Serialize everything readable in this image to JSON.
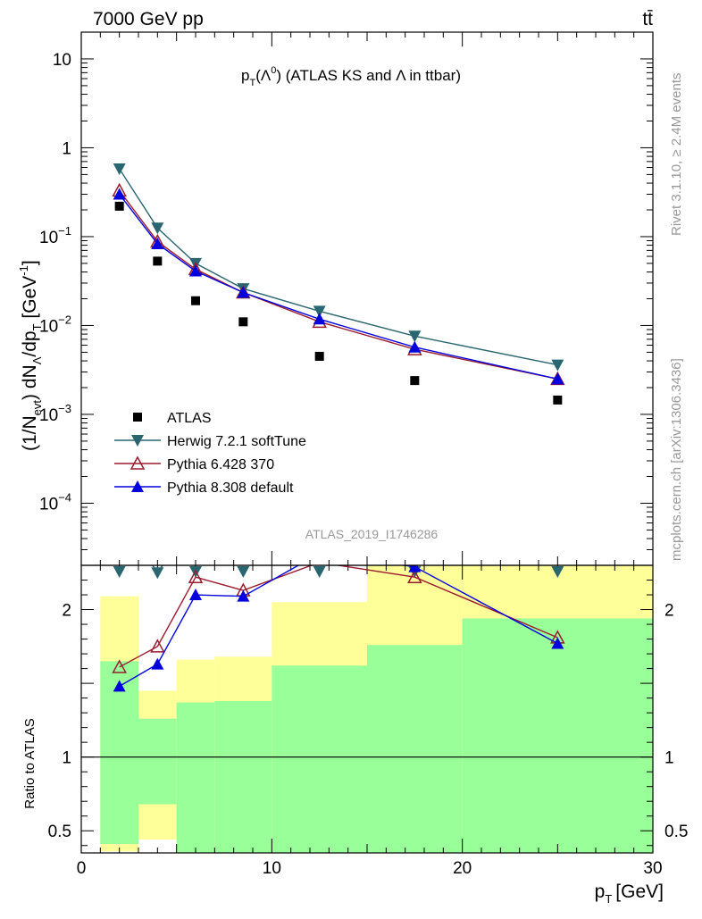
{
  "header": {
    "left": "7000 GeV pp",
    "right": "tt̄"
  },
  "side": {
    "rivet": "Rivet 3.1.10, ≥ 2.4M events",
    "mcplots": "mcplots.cern.ch [arXiv:1306.3436]"
  },
  "chart_data": {
    "type": "line",
    "title_parts": {
      "p": "p",
      "T": "T",
      "lam": "(Λ",
      "zero": "0",
      "rest": ") (ATLAS KS and Λ in ttbar)"
    },
    "analysis_label": "ATLAS_2019_I1746286",
    "x_axis": {
      "label_parts": {
        "p": "p",
        "T": "T",
        "unit": "[GeV]"
      },
      "range": [
        0,
        30
      ],
      "ticks": [
        0,
        10,
        20,
        30
      ],
      "tick_labels": [
        "0",
        "10",
        "20",
        "30"
      ]
    },
    "main_panel": {
      "scale": "log",
      "yrange": [
        2e-05,
        20
      ],
      "ylabel_parts": {
        "a": "(1/N",
        "evt": "evt",
        "b": ") dN",
        "lam": "Λ",
        "c": "/dp",
        "T": "T",
        "d": " [GeV",
        "exp": "-1",
        "e": "]"
      },
      "ticks": [
        {
          "base": "10",
          "exp": "",
          "plain": "10",
          "value": 10
        },
        {
          "base": "1",
          "exp": "",
          "plain": "1",
          "value": 1
        },
        {
          "base": "10",
          "exp": "−1",
          "plain": "",
          "value": 0.1
        },
        {
          "base": "10",
          "exp": "−2",
          "plain": "",
          "value": 0.01
        },
        {
          "base": "10",
          "exp": "−3",
          "plain": "",
          "value": 0.001
        },
        {
          "base": "10",
          "exp": "−4",
          "plain": "",
          "value": 0.0001
        }
      ]
    },
    "ratio_panel": {
      "ylabel": "Ratio to ATLAS",
      "yrange": [
        0.35,
        2.3
      ],
      "ticks": [
        0.5,
        1,
        2
      ],
      "tick_labels": [
        "0.5",
        "1",
        "2"
      ],
      "bands": [
        {
          "xlo": 1,
          "xhi": 3,
          "green": [
            0.41,
            1.65
          ],
          "yellow": [
            0.36,
            2.09
          ]
        },
        {
          "xlo": 3,
          "xhi": 5,
          "green": [
            0.68,
            1.26
          ],
          "yellow": [
            0.44,
            1.45
          ]
        },
        {
          "xlo": 5,
          "xhi": 7,
          "green": [
            0.35,
            1.37
          ],
          "yellow": [
            0.35,
            1.66
          ]
        },
        {
          "xlo": 7,
          "xhi": 10,
          "green": [
            0.35,
            1.38
          ],
          "yellow": [
            0.35,
            1.68
          ]
        },
        {
          "xlo": 10,
          "xhi": 15,
          "green": [
            0.35,
            1.62
          ],
          "yellow": [
            0.35,
            2.05
          ]
        },
        {
          "xlo": 15,
          "xhi": 20,
          "green": [
            0.35,
            1.76
          ],
          "yellow": [
            0.35,
            2.3
          ]
        },
        {
          "xlo": 20,
          "xhi": 30,
          "green": [
            0.35,
            1.94
          ],
          "yellow": [
            0.35,
            2.3
          ]
        }
      ]
    },
    "x": [
      2,
      4,
      6,
      8.5,
      12.5,
      17.5,
      25
    ],
    "series": [
      {
        "name": "ATLAS",
        "color": "#000000",
        "marker": "square",
        "values": [
          0.22,
          0.053,
          0.019,
          0.011,
          0.0045,
          0.0024,
          0.00145
        ]
      },
      {
        "name": "Herwig 7.2.1 softTune",
        "color": "#2a6670",
        "marker": "triangle-down",
        "values": [
          0.58,
          0.125,
          0.05,
          0.026,
          0.0145,
          0.0076,
          0.0036
        ],
        "ratio": [
          2.64,
          2.25,
          2.62,
          2.36,
          3.22,
          3.15,
          2.48
        ]
      },
      {
        "name": "Pythia 6.428 370",
        "color": "#9b1b2f",
        "marker": "triangle-up-open",
        "values": [
          0.33,
          0.088,
          0.043,
          0.0235,
          0.011,
          0.0054,
          0.0025
        ],
        "ratio": [
          1.61,
          1.75,
          2.22,
          2.13,
          2.32,
          2.22,
          1.81
        ]
      },
      {
        "name": "Pythia 8.308 default",
        "color": "#0000dd",
        "marker": "triangle-up",
        "values": [
          0.3,
          0.083,
          0.041,
          0.0235,
          0.0118,
          0.0057,
          0.0025
        ],
        "ratio": [
          1.48,
          1.63,
          2.1,
          2.09,
          2.38,
          2.29,
          1.77
        ]
      }
    ],
    "legend_placement": "lower-left of main panel"
  }
}
